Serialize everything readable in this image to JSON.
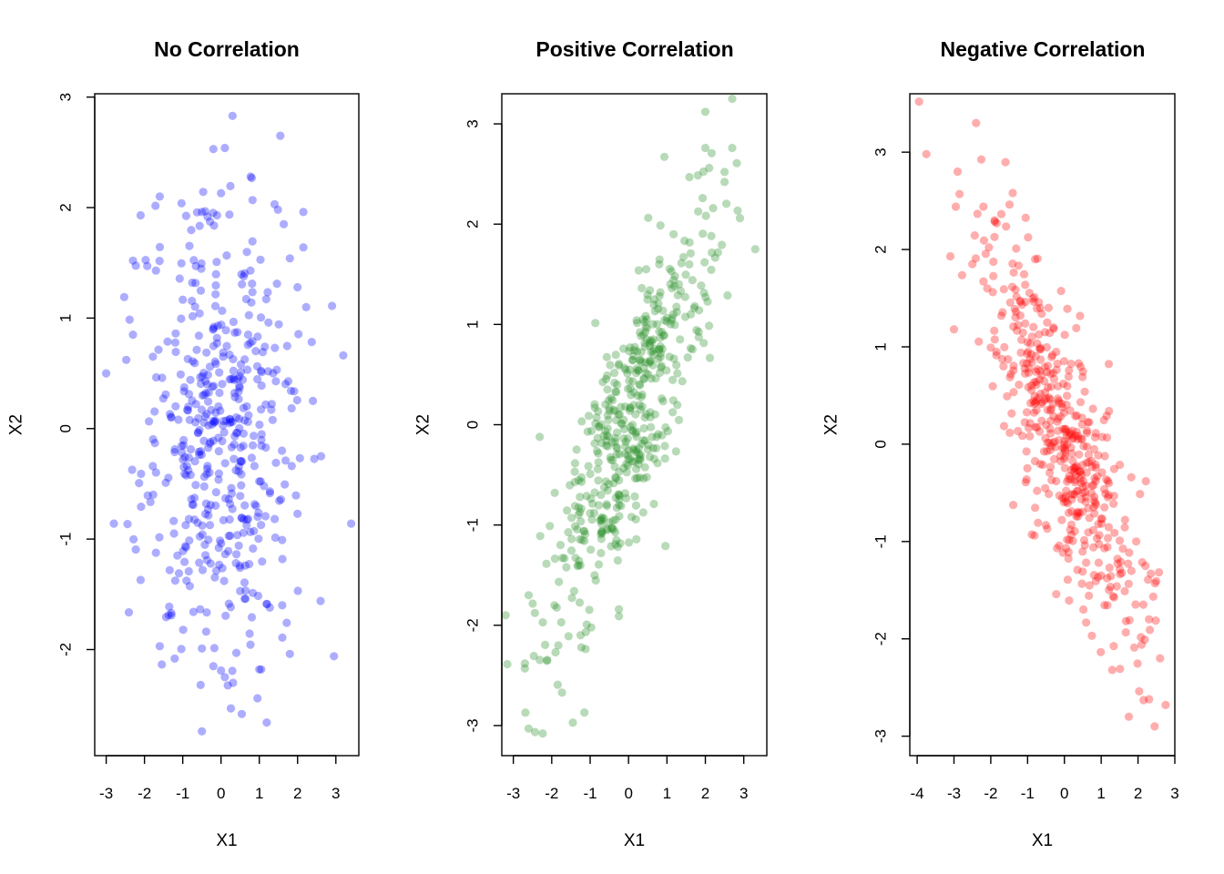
{
  "chart_data": [
    {
      "type": "scatter",
      "title": "No Correlation",
      "xlabel": "X1",
      "ylabel": "X2",
      "xlim": [
        -3.3,
        3.6
      ],
      "ylim": [
        -2.96,
        3.03
      ],
      "xticks": [
        -3,
        -2,
        -1,
        0,
        1,
        2,
        3
      ],
      "yticks": [
        -2,
        -1,
        0,
        1,
        2,
        3
      ],
      "color": "#0000FF",
      "opacity": 0.32,
      "correlation": 0.0,
      "n_points": 500,
      "grid": false,
      "points": [
        [
          0.3,
          2.83
        ],
        [
          1.55,
          2.65
        ],
        [
          0.1,
          2.54
        ],
        [
          -0.2,
          2.53
        ],
        [
          0.0,
          2.13
        ],
        [
          1.4,
          2.03
        ],
        [
          -1.6,
          2.1
        ],
        [
          -0.5,
          1.96
        ],
        [
          -2.1,
          1.93
        ],
        [
          2.15,
          1.96
        ],
        [
          2.15,
          1.64
        ],
        [
          -2.3,
          1.52
        ],
        [
          1.8,
          1.54
        ],
        [
          -1.7,
          1.43
        ],
        [
          -2.3,
          0.85
        ],
        [
          2.9,
          1.11
        ],
        [
          -3.0,
          0.5
        ],
        [
          2.4,
          0.25
        ],
        [
          -2.8,
          -0.86
        ],
        [
          3.4,
          -0.86
        ],
        [
          -2.1,
          -1.37
        ],
        [
          2.6,
          -1.56
        ],
        [
          2.95,
          -2.06
        ],
        [
          1.8,
          -2.04
        ],
        [
          -1.6,
          -1.97
        ],
        [
          -0.5,
          -2.74
        ],
        [
          0.1,
          -2.25
        ],
        [
          0.0,
          -2.19
        ],
        [
          1.0,
          -2.18
        ],
        [
          -0.2,
          -2.15
        ],
        [
          0.4,
          -2.03
        ],
        [
          -0.5,
          -1.99
        ],
        [
          1.05,
          -2.18
        ],
        [
          -1.3,
          -1.67
        ],
        [
          1.6,
          -1.6
        ],
        [
          0.5,
          -1.47
        ],
        [
          -1.1,
          -1.31
        ]
      ]
    },
    {
      "type": "scatter",
      "title": "Positive Correlation",
      "xlabel": "X1",
      "ylabel": "X2",
      "xlim": [
        -3.3,
        3.6
      ],
      "ylim": [
        -3.3,
        3.3
      ],
      "xticks": [
        -3,
        -2,
        -1,
        0,
        1,
        2,
        3
      ],
      "yticks": [
        -3,
        -2,
        -1,
        0,
        1,
        2,
        3
      ],
      "color": "#228B22",
      "opacity": 0.32,
      "correlation": 0.8,
      "n_points": 500,
      "grid": false,
      "points": [
        [
          2.7,
          3.25
        ],
        [
          2.0,
          3.12
        ],
        [
          2.0,
          2.76
        ],
        [
          2.7,
          2.76
        ],
        [
          2.1,
          2.56
        ],
        [
          2.5,
          2.52
        ],
        [
          2.5,
          2.42
        ],
        [
          3.3,
          1.75
        ],
        [
          2.9,
          2.06
        ],
        [
          2.2,
          2.16
        ],
        [
          -3.2,
          -1.9
        ],
        [
          -2.7,
          -2.38
        ],
        [
          -2.7,
          -2.43
        ],
        [
          -2.6,
          -3.03
        ],
        [
          -1.45,
          -2.97
        ],
        [
          -1.15,
          -2.87
        ],
        [
          -2.6,
          -1.7
        ],
        [
          -2.3,
          -1.11
        ],
        [
          -2.05,
          -1.01
        ],
        [
          -1.9,
          -2.27
        ],
        [
          -1.25,
          -2.1
        ],
        [
          -0.25,
          -1.84
        ],
        [
          -0.25,
          -1.91
        ]
      ]
    },
    {
      "type": "scatter",
      "title": "Negative Correlation",
      "xlabel": "X1",
      "ylabel": "X2",
      "xlim": [
        -4.2,
        3.0
      ],
      "ylim": [
        -3.2,
        3.6
      ],
      "xticks": [
        -4,
        -3,
        -2,
        -1,
        0,
        1,
        2,
        3
      ],
      "yticks": [
        -3,
        -2,
        -1,
        0,
        1,
        2,
        3
      ],
      "color": "#FF0000",
      "opacity": 0.32,
      "correlation": -0.8,
      "n_points": 500,
      "grid": false,
      "points": [
        [
          -3.95,
          3.52
        ],
        [
          -3.75,
          2.98
        ],
        [
          -2.4,
          3.3
        ],
        [
          -2.9,
          2.8
        ],
        [
          -2.85,
          2.57
        ],
        [
          -2.95,
          2.44
        ],
        [
          -2.2,
          2.44
        ],
        [
          -3.0,
          1.18
        ],
        [
          -3.1,
          1.93
        ],
        [
          -2.5,
          1.85
        ],
        [
          -1.9,
          2.3
        ],
        [
          2.6,
          -2.2
        ],
        [
          2.75,
          -2.68
        ],
        [
          2.3,
          -2.62
        ],
        [
          2.45,
          -2.9
        ],
        [
          1.75,
          -2.8
        ],
        [
          1.3,
          -2.32
        ],
        [
          2.1,
          -2.06
        ],
        [
          1.9,
          -2.09
        ],
        [
          2.35,
          -1.33
        ],
        [
          2.3,
          -1.8
        ],
        [
          2.2,
          -1.25
        ],
        [
          1.95,
          -1.0
        ]
      ]
    }
  ]
}
